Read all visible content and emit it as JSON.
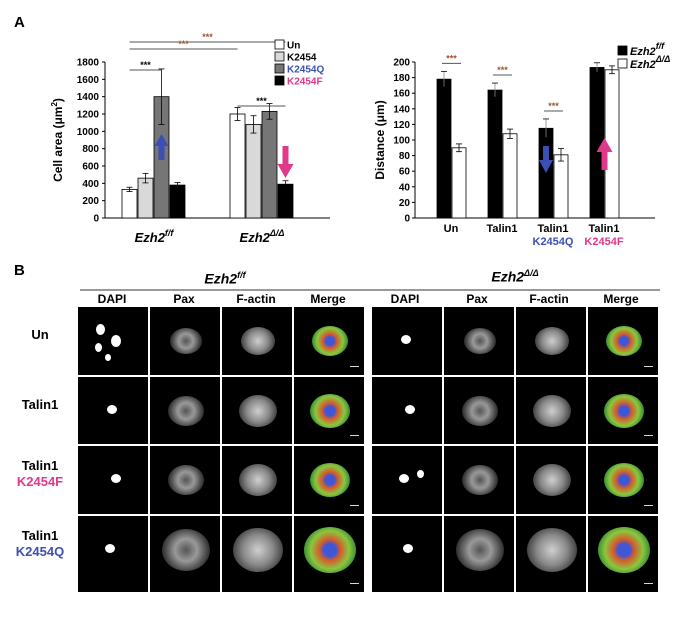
{
  "panel_a_label": "A",
  "panel_b_label": "B",
  "chart_data": [
    {
      "type": "bar",
      "ylabel": "Cell area (μm",
      "ylabel_sup": "2",
      "ylabel_end": ")",
      "ylim": [
        0,
        1800
      ],
      "yticks": [
        "0",
        "200",
        "400",
        "600",
        "800",
        "1000",
        "1200",
        "1400",
        "1600",
        "1800"
      ],
      "group_labels": [
        {
          "base": "Ezh2",
          "sup": "f/f"
        },
        {
          "base": "Ezh2",
          "sup": "Δ/Δ"
        }
      ],
      "legend": [
        {
          "label": "Un",
          "color": "#ffffff",
          "text_color": "#000000"
        },
        {
          "label": "K2454",
          "color": "#d9d9d9",
          "text_color": "#000000"
        },
        {
          "label": "K2454Q",
          "color": "#767676",
          "text_color": "#3c4fb4"
        },
        {
          "label": "K2454F",
          "color": "#000000",
          "text_color": "#e0398a"
        }
      ],
      "series": [
        {
          "name": "Un",
          "values": [
            330,
            1200
          ]
        },
        {
          "name": "K2454",
          "values": [
            460,
            1080
          ]
        },
        {
          "name": "K2454Q",
          "values": [
            1400,
            1230
          ]
        },
        {
          "name": "K2454F",
          "values": [
            380,
            390
          ]
        }
      ],
      "errors": [
        [
          25,
          75
        ],
        [
          55,
          100
        ],
        [
          320,
          90
        ],
        [
          30,
          40
        ]
      ],
      "significance": [
        "***",
        "***",
        "***",
        "***"
      ]
    },
    {
      "type": "bar",
      "ylabel": "Distance (μm)",
      "ylim": [
        0,
        200
      ],
      "yticks": [
        "0",
        "20",
        "40",
        "60",
        "80",
        "100",
        "120",
        "140",
        "160",
        "180",
        "200"
      ],
      "categories": [
        {
          "line1": "Un",
          "line2": "",
          "color2": ""
        },
        {
          "line1": "Talin1",
          "line2": "",
          "color2": ""
        },
        {
          "line1": "Talin1",
          "line2": "K2454Q",
          "color2": "#3c4fb4"
        },
        {
          "line1": "Talin1",
          "line2": "K2454F",
          "color2": "#e0398a"
        }
      ],
      "legend": [
        {
          "base": "Ezh2",
          "sup": "f/f",
          "color": "#000000"
        },
        {
          "base": "Ezh2",
          "sup": "Δ/Δ",
          "color": "#ffffff"
        }
      ],
      "series": [
        {
          "name": "Ezh2 f/f",
          "values": [
            178,
            164,
            115,
            193
          ]
        },
        {
          "name": "Ezh2 Δ/Δ",
          "values": [
            90,
            108,
            81,
            190
          ]
        }
      ],
      "errors": [
        [
          10,
          9,
          12,
          6
        ],
        [
          5,
          6,
          8,
          5
        ]
      ],
      "significance": [
        "***",
        "***",
        "***"
      ]
    }
  ],
  "panel_b": {
    "groups": [
      {
        "base": "Ezh2",
        "sup": "f/f"
      },
      {
        "base": "Ezh2",
        "sup": "Δ/Δ"
      }
    ],
    "columns": [
      "DAPI",
      "Pax",
      "F-actin",
      "Merge"
    ],
    "rows": [
      {
        "line1": "Un",
        "line2": "",
        "color2": ""
      },
      {
        "line1": "Talin1",
        "line2": "",
        "color2": ""
      },
      {
        "line1": "Talin1",
        "line2": "K2454F",
        "color2": "#e0398a"
      },
      {
        "line1": "Talin1",
        "line2": "K2454Q",
        "color2": "#3c4fb4"
      }
    ]
  }
}
